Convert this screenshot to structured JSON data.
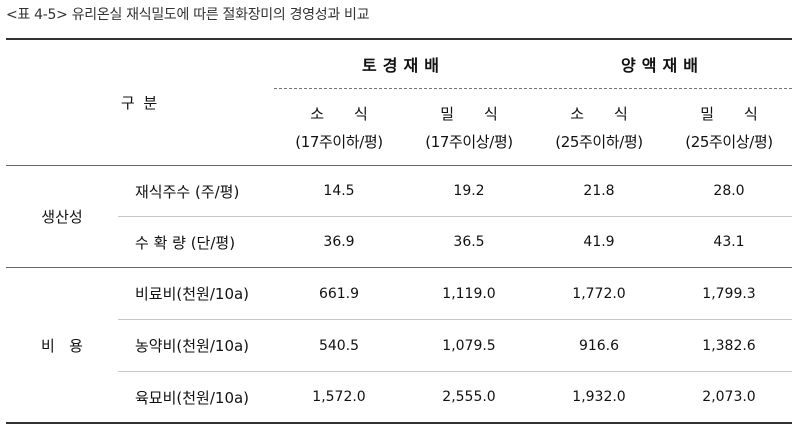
{
  "caption": "<표 4-5> 유리온실 재식밀도에 따른 절화장미의 경영성과 비교",
  "header": {
    "division": "구   분",
    "groups": [
      "토경재배",
      "양액재배"
    ],
    "columns": [
      {
        "name": "소식",
        "range": "(17주이하/평)"
      },
      {
        "name": "밀식",
        "range": "(17주이상/평)"
      },
      {
        "name": "소식",
        "range": "(25주이하/평)"
      },
      {
        "name": "밀식",
        "range": "(25주이상/평)"
      }
    ]
  },
  "sections": [
    {
      "category": "생산성",
      "rows": [
        {
          "item": "재식주수 (주/평)",
          "values": [
            "14.5",
            "19.2",
            "21.8",
            "28.0"
          ]
        },
        {
          "item": "수 확 량 (단/평)",
          "values": [
            "36.9",
            "36.5",
            "41.9",
            "43.1"
          ]
        }
      ]
    },
    {
      "category": "비   용",
      "rows": [
        {
          "item": "비료비(천원/10a)",
          "values": [
            "661.9",
            "1,119.0",
            "1,772.0",
            "1,799.3"
          ]
        },
        {
          "item": "농약비(천원/10a)",
          "values": [
            "540.5",
            "1,079.5",
            "916.6",
            "1,382.6"
          ]
        },
        {
          "item": "육묘비(천원/10a)",
          "values": [
            "1,572.0",
            "2,555.0",
            "1,932.0",
            "2,073.0"
          ]
        }
      ]
    }
  ]
}
